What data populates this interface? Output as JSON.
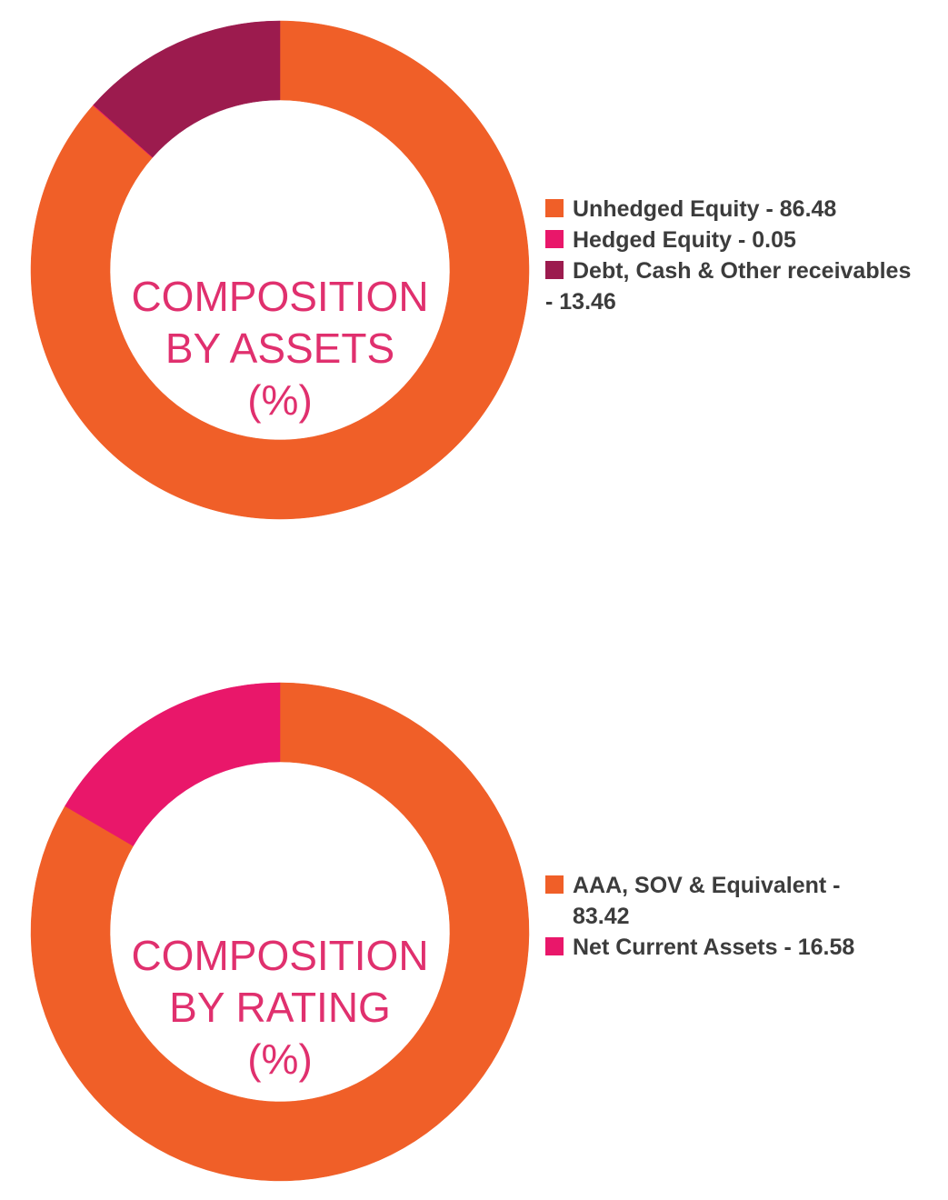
{
  "chart_data": [
    {
      "type": "pie",
      "title": "",
      "center_label_lines": [
        "COMPOSITION",
        "BY ASSETS",
        "(%)"
      ],
      "slices": [
        {
          "label": "Unhedged Equity",
          "value": 86.48,
          "color": "#f05f28"
        },
        {
          "label": "Hedged Equity",
          "value": 0.05,
          "color": "#e9176a"
        },
        {
          "label": "Debt, Cash & Other receivables",
          "value": 13.46,
          "color": "#9c1b4e"
        }
      ],
      "legend": [
        {
          "text_line1": "Unhedged Equity - 86.48",
          "text_line2": "",
          "color": "#f05f28"
        },
        {
          "text_line1": "Hedged Equity - 0.05",
          "text_line2": "",
          "color": "#e9176a"
        },
        {
          "text_line1": "Debt, Cash & Other receivables",
          "text_line2": "- 13.46",
          "color": "#9c1b4e"
        }
      ],
      "legend_position": "right"
    },
    {
      "type": "pie",
      "title": "",
      "center_label_lines": [
        "COMPOSITION",
        "BY RATING",
        "(%)"
      ],
      "slices": [
        {
          "label": "AAA, SOV & Equivalent",
          "value": 83.42,
          "color": "#f05f28"
        },
        {
          "label": "Net Current Assets",
          "value": 16.58,
          "color": "#e9176a"
        }
      ],
      "legend": [
        {
          "text_line1": "AAA, SOV & Equivalent -",
          "text_line2": "83.42",
          "color": "#f05f28"
        },
        {
          "text_line1": "Net Current Assets - 16.58",
          "text_line2": "",
          "color": "#e9176a"
        }
      ],
      "legend_position": "right"
    }
  ]
}
